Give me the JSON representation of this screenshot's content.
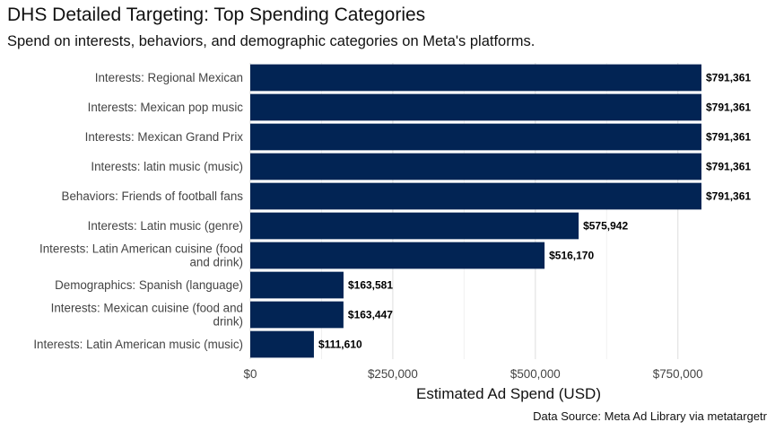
{
  "chart_data": {
    "type": "bar",
    "orientation": "horizontal",
    "title": "DHS Detailed Targeting: Top Spending Categories",
    "subtitle": "Spend on interests, behaviors, and demographic categories on Meta's platforms.",
    "xlabel": "Estimated Ad Spend (USD)",
    "ylabel": "",
    "caption": "Data Source: Meta Ad Library via metatargetr",
    "xlim": [
      0,
      870000
    ],
    "x_ticks": [
      {
        "value": 0,
        "label": "$0"
      },
      {
        "value": 250000,
        "label": "$250,000"
      },
      {
        "value": 500000,
        "label": "$500,000"
      },
      {
        "value": 750000,
        "label": "$750,000"
      }
    ],
    "grid": "vertical",
    "bar_color": "#022454",
    "categories": [
      [
        "Interests: Regional Mexican"
      ],
      [
        "Interests: Mexican pop music"
      ],
      [
        "Interests: Mexican Grand Prix"
      ],
      [
        "Interests: latin music (music)"
      ],
      [
        "Behaviors: Friends of football fans"
      ],
      [
        "Interests: Latin music (genre)"
      ],
      [
        "Interests: Latin American cuisine (food",
        "and drink)"
      ],
      [
        "Demographics: Spanish (language)"
      ],
      [
        "Interests: Mexican cuisine (food and",
        "drink)"
      ],
      [
        "Interests: Latin American music (music)"
      ]
    ],
    "values": [
      791361,
      791361,
      791361,
      791361,
      791361,
      575942,
      516170,
      163581,
      163447,
      111610
    ],
    "value_labels": [
      "$791,361",
      "$791,361",
      "$791,361",
      "$791,361",
      "$791,361",
      "$575,942",
      "$516,170",
      "$163,581",
      "$163,447",
      "$111,610"
    ]
  }
}
